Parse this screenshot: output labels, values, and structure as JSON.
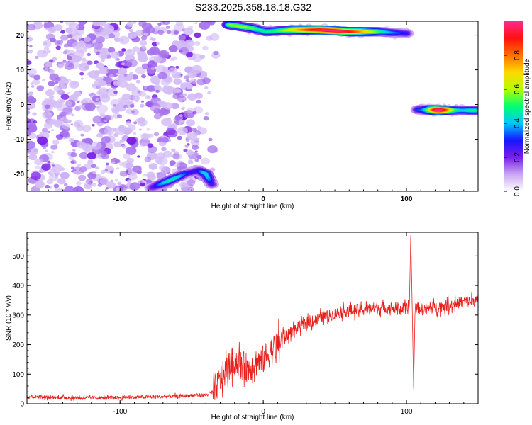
{
  "chart_data": [
    {
      "type": "heatmap",
      "title": "S233.2025.358.18.18.G32",
      "xlabel": "Height of straight line (km)",
      "ylabel": "Frequency (Hz)",
      "xlim": [
        -165,
        150
      ],
      "ylim": [
        -25,
        24
      ],
      "x_ticks": [
        -100,
        0,
        100
      ],
      "y_ticks": [
        20,
        10,
        0,
        -10,
        -20
      ],
      "colorbar": {
        "label": "Normalized spectral amplitude",
        "range": [
          0,
          1
        ],
        "ticks": [
          "0.0",
          "0.2",
          "0.4",
          "0.6",
          "0.8"
        ],
        "colormap": [
          "#ffffff",
          "#c9a6f2",
          "#7a1ee8",
          "#1616ff",
          "#00c8ff",
          "#00ff70",
          "#b4ff00",
          "#ffd800",
          "#ff7000",
          "#ff1010",
          "#ff2a8a"
        ]
      },
      "features": [
        {
          "desc": "diffuse noise",
          "x_range": [
            -165,
            -45
          ],
          "f_range": [
            -25,
            24
          ],
          "amplitude": 0.15
        },
        {
          "desc": "rising trace",
          "points": [
            [
              -78,
              -24
            ],
            [
              -66,
              -22
            ],
            [
              -55,
              -20
            ],
            [
              -45,
              -19
            ],
            [
              -40,
              -20
            ],
            [
              -36,
              -23
            ]
          ],
          "amplitude": 0.5
        },
        {
          "desc": "trace",
          "points": [
            [
              -24,
              23
            ],
            [
              -8,
              22
            ],
            [
              2,
              21
            ],
            [
              20,
              21.5
            ],
            [
              40,
              21.5
            ],
            [
              60,
              21
            ],
            [
              80,
              21
            ],
            [
              100,
              20.5
            ]
          ],
          "amplitude": 0.95
        },
        {
          "desc": "trace",
          "points": [
            [
              108,
              -1.5
            ],
            [
              125,
              -1.6
            ],
            [
              148,
              -1.7
            ]
          ],
          "amplitude": 0.95
        }
      ]
    },
    {
      "type": "line",
      "xlabel": "Height of straight line (km)",
      "ylabel": "SNR (10 * v/v)",
      "xlim": [
        -165,
        150
      ],
      "ylim": [
        0,
        580
      ],
      "x_ticks": [
        -100,
        0,
        100
      ],
      "y_ticks": [
        0,
        100,
        200,
        300,
        400,
        500
      ],
      "color": "#e8201c",
      "x": [
        -165,
        -150,
        -130,
        -110,
        -90,
        -70,
        -50,
        -40,
        -35,
        -30,
        -25,
        -20,
        -15,
        -10,
        -5,
        0,
        5,
        10,
        15,
        20,
        25,
        30,
        40,
        50,
        60,
        70,
        80,
        90,
        100,
        105,
        110,
        120,
        130,
        140,
        150
      ],
      "values": [
        25,
        22,
        20,
        20,
        22,
        24,
        28,
        30,
        40,
        80,
        120,
        150,
        130,
        120,
        140,
        150,
        175,
        200,
        225,
        245,
        260,
        270,
        290,
        305,
        315,
        320,
        325,
        325,
        320,
        330,
        320,
        325,
        335,
        345,
        350
      ]
    }
  ]
}
